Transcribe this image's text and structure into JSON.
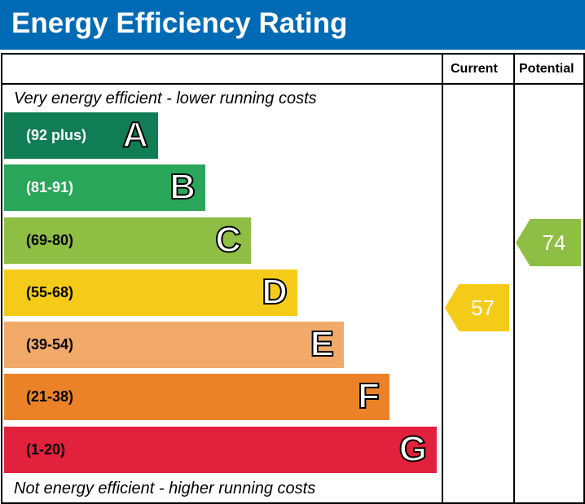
{
  "chart_data": {
    "type": "bar",
    "title": "Energy Efficiency Rating",
    "columns": [
      "Current",
      "Potential"
    ],
    "top_note": "Very energy efficient - lower running costs",
    "bottom_note": "Not energy efficient - higher running costs",
    "bands": [
      {
        "letter": "A",
        "range": "(92 plus)",
        "color": "#117d55",
        "text_color": "#ffffff"
      },
      {
        "letter": "B",
        "range": "(81-91)",
        "color": "#2aa65a",
        "text_color": "#ffffff"
      },
      {
        "letter": "C",
        "range": "(69-80)",
        "color": "#8fbe45",
        "text_color": "#000000"
      },
      {
        "letter": "D",
        "range": "(55-68)",
        "color": "#f5cb1a",
        "text_color": "#000000"
      },
      {
        "letter": "E",
        "range": "(39-54)",
        "color": "#f2aa6a",
        "text_color": "#000000"
      },
      {
        "letter": "F",
        "range": "(21-38)",
        "color": "#ec8227",
        "text_color": "#000000"
      },
      {
        "letter": "G",
        "range": "(1-20)",
        "color": "#e2213c",
        "text_color": "#000000"
      }
    ],
    "current": {
      "value": "57",
      "band": "D",
      "color": "#f5cb1a"
    },
    "potential": {
      "value": "74",
      "band": "C",
      "color": "#8fbe45"
    }
  }
}
